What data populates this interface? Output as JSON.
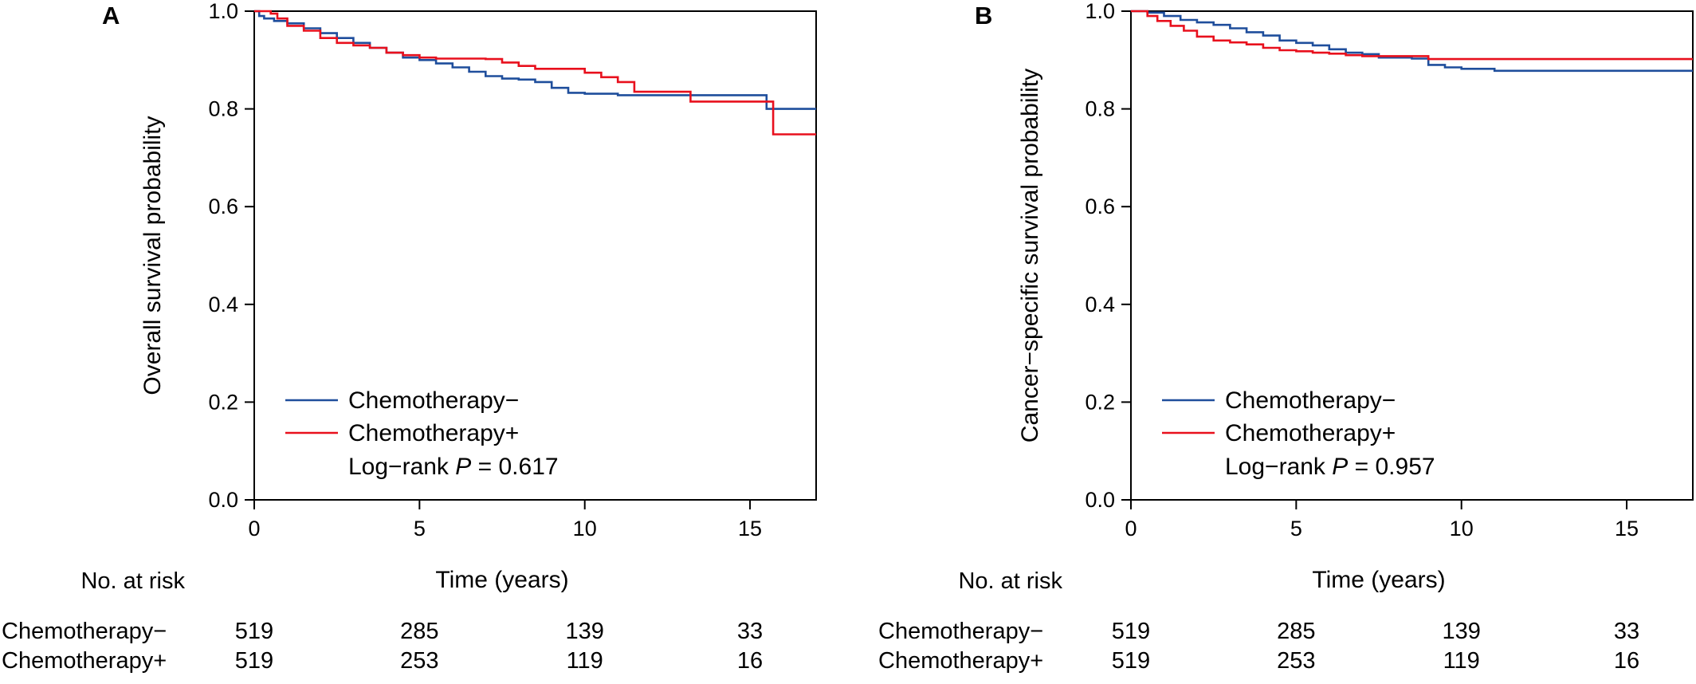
{
  "chart_data": [
    {
      "type": "line",
      "panel": "A",
      "ylabel": "Overall survival probability",
      "xlabel": "Time (years)",
      "xlim": [
        0,
        17
      ],
      "ylim": [
        0,
        1.0
      ],
      "xticks": [
        "0",
        "5",
        "10",
        "15"
      ],
      "yticks": [
        "0.0",
        "0.2",
        "0.4",
        "0.6",
        "0.8",
        "1.0"
      ],
      "legend_position": "bottom-left",
      "annotation": {
        "prefix": "Log−rank ",
        "italic": "P",
        "suffix": " = 0.617"
      },
      "colors": {
        "minus": "#1f4e9c",
        "plus": "#e8101d"
      },
      "series": [
        {
          "name": "Chemotherapy−",
          "color": "#1f4e9c",
          "x": [
            0,
            0.15,
            0.3,
            0.6,
            1.0,
            1.5,
            2.0,
            2.5,
            3.0,
            3.5,
            4.0,
            4.5,
            5.0,
            5.5,
            6.0,
            6.5,
            7.0,
            7.5,
            8.0,
            8.5,
            9.0,
            9.5,
            10.0,
            11.0,
            12.0,
            13.0,
            14.0,
            15.0,
            15.5,
            16.0,
            17.0
          ],
          "y": [
            1.0,
            0.99,
            0.985,
            0.98,
            0.975,
            0.965,
            0.955,
            0.945,
            0.935,
            0.925,
            0.915,
            0.905,
            0.9,
            0.893,
            0.885,
            0.876,
            0.867,
            0.862,
            0.86,
            0.855,
            0.843,
            0.833,
            0.831,
            0.828,
            0.828,
            0.828,
            0.828,
            0.828,
            0.8,
            0.8,
            0.8
          ]
        },
        {
          "name": "Chemotherapy+",
          "color": "#e8101d",
          "x": [
            0,
            0.5,
            0.7,
            1.0,
            1.5,
            2.0,
            2.5,
            3.0,
            3.5,
            4.0,
            4.5,
            5.0,
            5.5,
            6.0,
            7.0,
            7.5,
            8.0,
            8.5,
            9.0,
            10.0,
            10.5,
            11.0,
            11.5,
            12.0,
            13.0,
            13.2,
            14.0,
            15.0,
            15.7,
            16.0,
            17.0
          ],
          "y": [
            1.0,
            0.995,
            0.985,
            0.97,
            0.96,
            0.945,
            0.935,
            0.93,
            0.925,
            0.915,
            0.91,
            0.905,
            0.903,
            0.903,
            0.902,
            0.895,
            0.888,
            0.882,
            0.882,
            0.874,
            0.865,
            0.855,
            0.835,
            0.835,
            0.835,
            0.815,
            0.815,
            0.815,
            0.748,
            0.748,
            0.748
          ]
        }
      ],
      "risk_table": {
        "title": "No. at risk",
        "times": [
          0,
          5,
          10,
          15
        ],
        "rows": [
          {
            "label": "Chemotherapy−",
            "values": [
              "519",
              "285",
              "139",
              "33"
            ]
          },
          {
            "label": "Chemotherapy+",
            "values": [
              "519",
              "253",
              "119",
              "16"
            ]
          }
        ]
      }
    },
    {
      "type": "line",
      "panel": "B",
      "ylabel": "Cancer−specific survival probability",
      "xlabel": "Time (years)",
      "xlim": [
        0,
        17
      ],
      "ylim": [
        0,
        1.0
      ],
      "xticks": [
        "0",
        "5",
        "10",
        "15"
      ],
      "yticks": [
        "0.0",
        "0.2",
        "0.4",
        "0.6",
        "0.8",
        "1.0"
      ],
      "legend_position": "bottom-left",
      "annotation": {
        "prefix": "Log−rank ",
        "italic": "P",
        "suffix": " = 0.957"
      },
      "colors": {
        "minus": "#1f4e9c",
        "plus": "#e8101d"
      },
      "series": [
        {
          "name": "Chemotherapy−",
          "color": "#1f4e9c",
          "x": [
            0,
            0.5,
            1.0,
            1.5,
            2.0,
            2.5,
            3.0,
            3.5,
            4.0,
            4.5,
            5.0,
            5.5,
            6.0,
            6.5,
            7.0,
            7.5,
            8.0,
            8.5,
            9.0,
            9.5,
            10.0,
            11.0,
            12.0,
            13.0,
            14.0,
            15.0,
            16.0,
            17.0
          ],
          "y": [
            1.0,
            0.997,
            0.99,
            0.982,
            0.977,
            0.972,
            0.965,
            0.957,
            0.95,
            0.94,
            0.935,
            0.93,
            0.922,
            0.915,
            0.912,
            0.905,
            0.905,
            0.903,
            0.89,
            0.885,
            0.882,
            0.878,
            0.878,
            0.878,
            0.878,
            0.878,
            0.878,
            0.878
          ]
        },
        {
          "name": "Chemotherapy+",
          "color": "#e8101d",
          "x": [
            0,
            0.5,
            0.8,
            1.2,
            1.6,
            2.0,
            2.5,
            3.0,
            3.5,
            4.0,
            4.5,
            5.0,
            5.5,
            6.0,
            6.5,
            7.0,
            8.0,
            8.8,
            9.0,
            10.0,
            12.0,
            14.0,
            16.0,
            17.0
          ],
          "y": [
            1.0,
            0.99,
            0.98,
            0.97,
            0.96,
            0.948,
            0.94,
            0.936,
            0.932,
            0.925,
            0.92,
            0.918,
            0.915,
            0.913,
            0.91,
            0.908,
            0.908,
            0.908,
            0.902,
            0.902,
            0.902,
            0.902,
            0.902,
            0.902
          ]
        }
      ],
      "risk_table": {
        "title": "No. at risk",
        "times": [
          0,
          5,
          10,
          15
        ],
        "rows": [
          {
            "label": "Chemotherapy−",
            "values": [
              "519",
              "285",
              "139",
              "33"
            ]
          },
          {
            "label": "Chemotherapy+",
            "values": [
              "519",
              "253",
              "119",
              "16"
            ]
          }
        ]
      }
    }
  ]
}
